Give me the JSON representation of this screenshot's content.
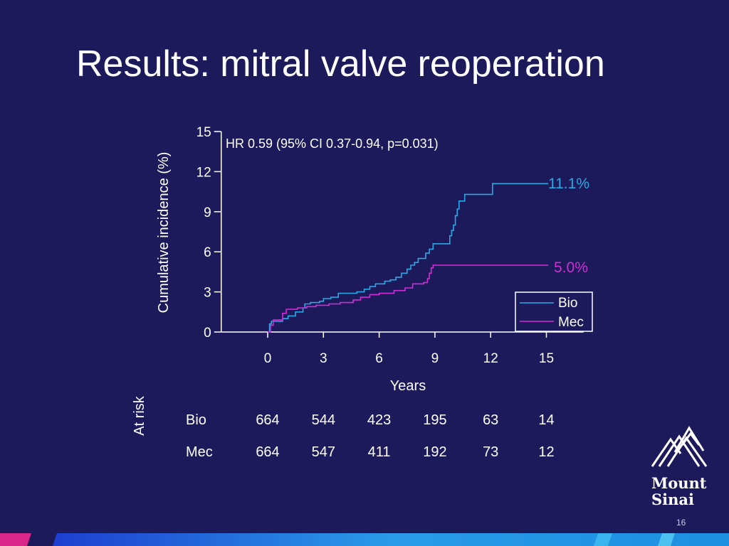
{
  "slide": {
    "title": "Results: mitral valve reoperation",
    "slide_number": "16",
    "logo_text": [
      "Mount",
      "Sinai"
    ]
  },
  "colors": {
    "background": "#1c1a5a",
    "bio": "#29a8e6",
    "mec": "#d32cd6",
    "text": "#ffffff"
  },
  "chart_data": {
    "type": "line",
    "annotation": "HR 0.59 (95% CI 0.37-0.94, p=0.031)",
    "xlabel": "Years",
    "ylabel": "Cumulative incidence (%)",
    "xlim": [
      -2.5,
      17
    ],
    "ylim": [
      0,
      15
    ],
    "xticks": [
      0,
      3,
      6,
      9,
      12,
      15
    ],
    "yticks": [
      0,
      3,
      6,
      9,
      12,
      15
    ],
    "legend_position": "lower-right",
    "series": [
      {
        "name": "Bio",
        "end_label": "11.1%",
        "points": [
          [
            0,
            0
          ],
          [
            0.1,
            0.6
          ],
          [
            0.2,
            0.8
          ],
          [
            0.8,
            1.0
          ],
          [
            1.1,
            1.2
          ],
          [
            1.5,
            1.5
          ],
          [
            1.9,
            1.8
          ],
          [
            2.0,
            2.1
          ],
          [
            2.3,
            2.2
          ],
          [
            2.8,
            2.3
          ],
          [
            3.0,
            2.5
          ],
          [
            3.4,
            2.6
          ],
          [
            3.8,
            2.9
          ],
          [
            4.8,
            3.0
          ],
          [
            5.2,
            3.2
          ],
          [
            5.5,
            3.4
          ],
          [
            5.8,
            3.6
          ],
          [
            6.3,
            3.8
          ],
          [
            6.6,
            3.9
          ],
          [
            6.9,
            4.1
          ],
          [
            7.2,
            4.4
          ],
          [
            7.5,
            4.7
          ],
          [
            7.7,
            5.0
          ],
          [
            7.9,
            5.2
          ],
          [
            8.1,
            5.5
          ],
          [
            8.5,
            5.9
          ],
          [
            8.7,
            6.2
          ],
          [
            8.9,
            6.6
          ],
          [
            9.8,
            7.2
          ],
          [
            9.9,
            7.6
          ],
          [
            10.0,
            8.0
          ],
          [
            10.1,
            8.7
          ],
          [
            10.2,
            9.2
          ],
          [
            10.3,
            9.8
          ],
          [
            10.6,
            10.3
          ],
          [
            12.1,
            11.1
          ],
          [
            15.1,
            11.1
          ]
        ]
      },
      {
        "name": "Mec",
        "end_label": "5.0%",
        "points": [
          [
            0,
            0
          ],
          [
            0.15,
            0.5
          ],
          [
            0.3,
            0.9
          ],
          [
            0.8,
            1.4
          ],
          [
            1.0,
            1.7
          ],
          [
            1.6,
            1.8
          ],
          [
            2.1,
            1.9
          ],
          [
            2.6,
            2.0
          ],
          [
            3.3,
            2.1
          ],
          [
            3.9,
            2.2
          ],
          [
            4.6,
            2.4
          ],
          [
            5.0,
            2.6
          ],
          [
            5.5,
            2.8
          ],
          [
            6.0,
            2.9
          ],
          [
            6.8,
            3.1
          ],
          [
            7.4,
            3.3
          ],
          [
            7.8,
            3.6
          ],
          [
            8.4,
            3.7
          ],
          [
            8.6,
            4.0
          ],
          [
            8.7,
            4.4
          ],
          [
            8.8,
            4.8
          ],
          [
            8.9,
            5.0
          ],
          [
            15.1,
            5.0
          ]
        ]
      }
    ],
    "legend": [
      "Bio",
      "Mec"
    ],
    "at_risk": {
      "label": "At risk",
      "years": [
        0,
        3,
        6,
        9,
        12,
        15
      ],
      "rows": [
        {
          "name": "Bio",
          "values": [
            "664",
            "544",
            "423",
            "195",
            "63",
            "14"
          ]
        },
        {
          "name": "Mec",
          "values": [
            "664",
            "547",
            "411",
            "192",
            "73",
            "12"
          ]
        }
      ]
    }
  }
}
